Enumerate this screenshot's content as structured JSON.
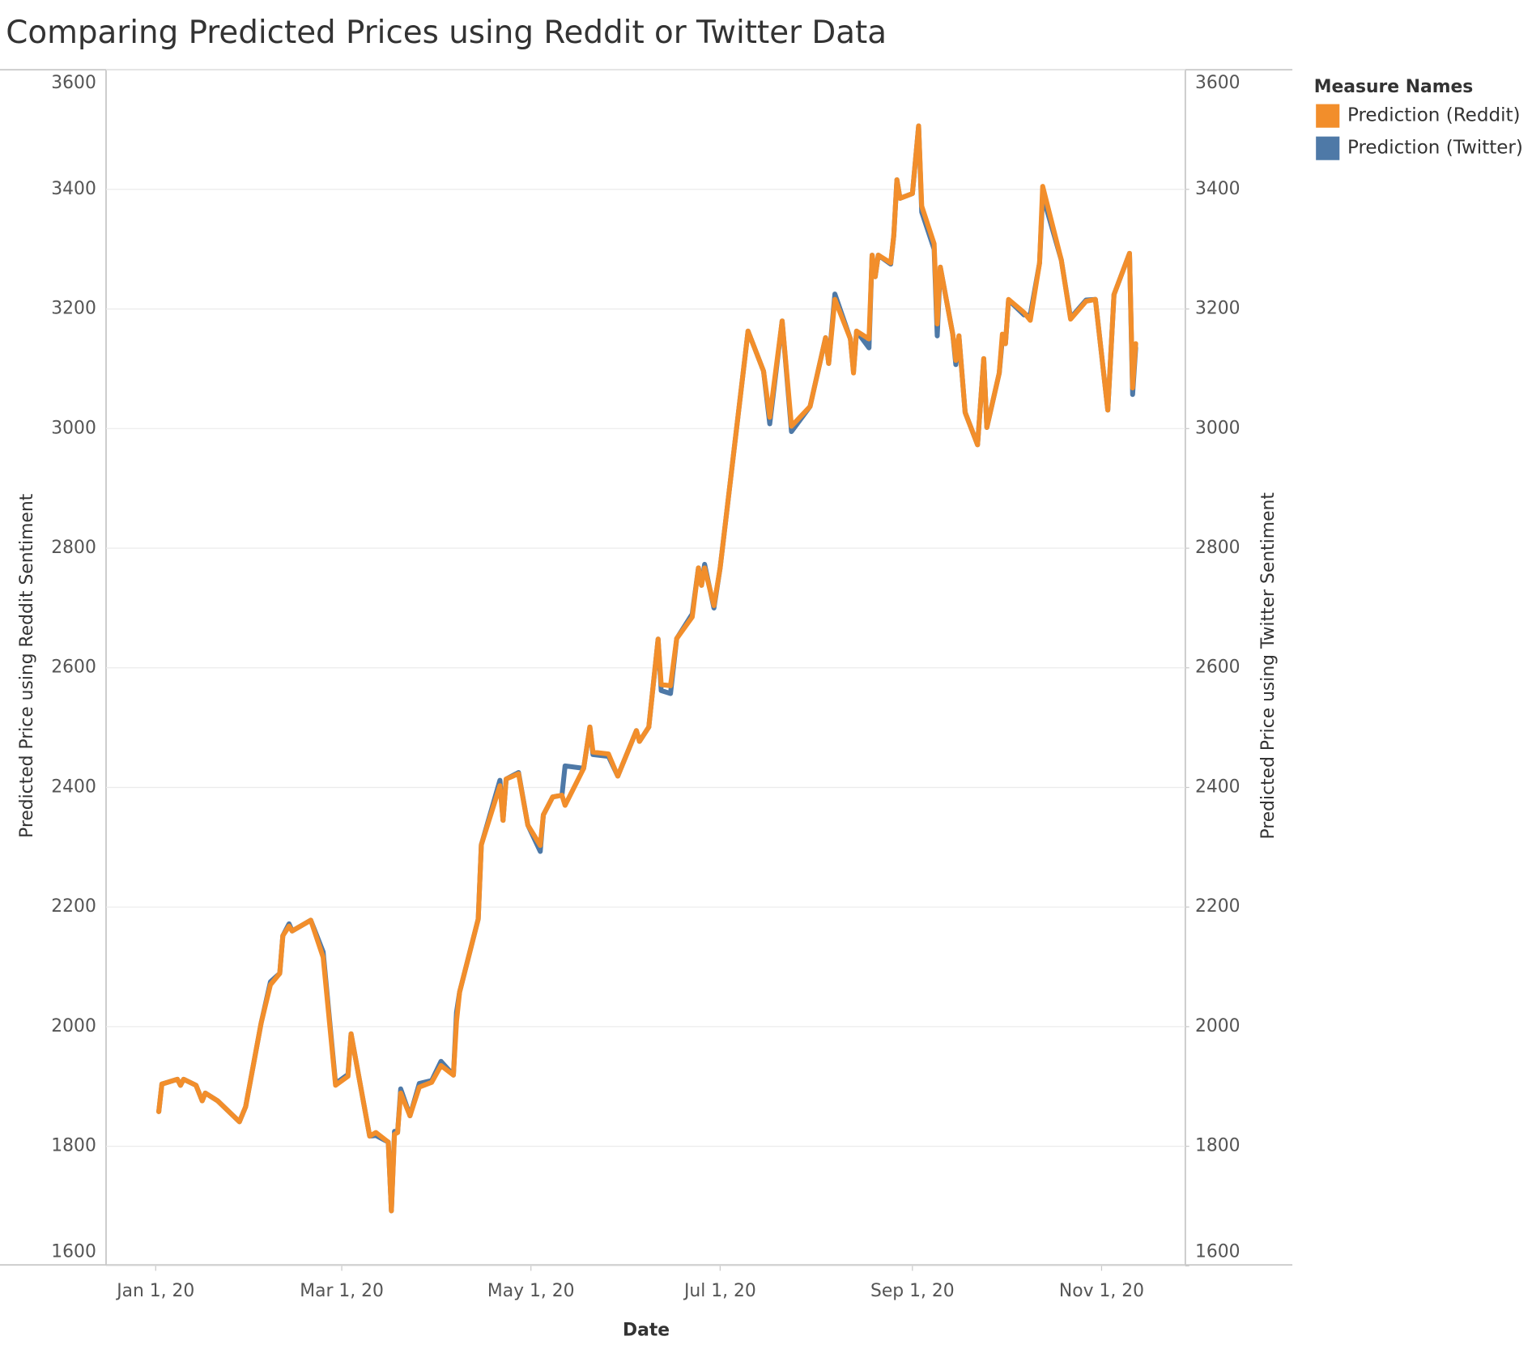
{
  "chart_data": {
    "type": "line",
    "title": "Comparing Predicted Prices using Reddit or Twitter Data",
    "x_label": "Date",
    "y_label": "Predicted Price using Reddit Sentiment",
    "y2_label": "Predicted Price using Twitter Sentiment",
    "legend_title": "Measure Names",
    "legend": "right",
    "grid": true,
    "x": [
      "2020-01-02",
      "2020-01-03",
      "2020-01-08",
      "2020-01-09",
      "2020-01-10",
      "2020-01-14",
      "2020-01-16",
      "2020-01-17",
      "2020-01-21",
      "2020-01-28",
      "2020-01-30",
      "2020-02-04",
      "2020-02-07",
      "2020-02-10",
      "2020-02-11",
      "2020-02-13",
      "2020-02-14",
      "2020-02-20",
      "2020-02-24",
      "2020-02-28",
      "2020-03-03",
      "2020-03-04",
      "2020-03-10",
      "2020-03-12",
      "2020-03-16",
      "2020-03-17",
      "2020-03-18",
      "2020-03-19",
      "2020-03-20",
      "2020-03-23",
      "2020-03-26",
      "2020-03-30",
      "2020-04-02",
      "2020-04-06",
      "2020-04-07",
      "2020-04-08",
      "2020-04-14",
      "2020-04-15",
      "2020-04-21",
      "2020-04-22",
      "2020-04-23",
      "2020-04-27",
      "2020-04-30",
      "2020-05-04",
      "2020-05-05",
      "2020-05-08",
      "2020-05-11",
      "2020-05-12",
      "2020-05-18",
      "2020-05-20",
      "2020-05-21",
      "2020-05-26",
      "2020-05-29",
      "2020-06-04",
      "2020-06-05",
      "2020-06-08",
      "2020-06-11",
      "2020-06-12",
      "2020-06-15",
      "2020-06-17",
      "2020-06-22",
      "2020-06-24",
      "2020-06-25",
      "2020-06-26",
      "2020-06-29",
      "2020-07-01",
      "2020-07-10",
      "2020-07-15",
      "2020-07-17",
      "2020-07-21",
      "2020-07-24",
      "2020-07-30",
      "2020-08-04",
      "2020-08-05",
      "2020-08-07",
      "2020-08-12",
      "2020-08-13",
      "2020-08-14",
      "2020-08-18",
      "2020-08-19",
      "2020-08-20",
      "2020-08-21",
      "2020-08-25",
      "2020-08-26",
      "2020-08-27",
      "2020-08-28",
      "2020-09-01",
      "2020-09-03",
      "2020-09-04",
      "2020-09-08",
      "2020-09-09",
      "2020-09-10",
      "2020-09-14",
      "2020-09-15",
      "2020-09-16",
      "2020-09-18",
      "2020-09-22",
      "2020-09-24",
      "2020-09-25",
      "2020-09-29",
      "2020-09-30",
      "2020-10-01",
      "2020-10-02",
      "2020-10-07",
      "2020-10-09",
      "2020-10-12",
      "2020-10-13",
      "2020-10-19",
      "2020-10-22",
      "2020-10-27",
      "2020-10-30",
      "2020-11-03",
      "2020-11-05",
      "2020-11-10",
      "2020-11-11",
      "2020-11-12"
    ],
    "series": [
      {
        "name": "Prediction (Twitter)",
        "color": "#4e79a7",
        "axis": "y2",
        "values": [
          1858,
          1904,
          1912,
          1902,
          1912,
          1902,
          1876,
          1889,
          1876,
          1841,
          1866,
          2006,
          2075,
          2089,
          2152,
          2172,
          2160,
          2178,
          2125,
          1905,
          1920,
          1988,
          1817,
          1818,
          1807,
          1692,
          1825,
          1823,
          1896,
          1851,
          1905,
          1910,
          1942,
          1919,
          2024,
          2058,
          2180,
          2304,
          2412,
          2345,
          2414,
          2425,
          2337,
          2293,
          2354,
          2384,
          2387,
          2436,
          2432,
          2501,
          2455,
          2452,
          2419,
          2495,
          2477,
          2501,
          2648,
          2562,
          2557,
          2649,
          2690,
          2767,
          2738,
          2773,
          2700,
          2767,
          3163,
          3096,
          3008,
          3180,
          2995,
          3037,
          3152,
          3109,
          3225,
          3150,
          3095,
          3163,
          3135,
          3290,
          3254,
          3290,
          3275,
          3323,
          3416,
          3385,
          3393,
          3506,
          3362,
          3300,
          3155,
          3270,
          3158,
          3107,
          3155,
          3027,
          2973,
          3117,
          3002,
          3093,
          3150,
          3142,
          3215,
          3190,
          3190,
          3277,
          3390,
          3282,
          3185,
          3215,
          3216,
          3031,
          3224,
          3293,
          3057,
          3135
        ]
      },
      {
        "name": "Prediction (Reddit)",
        "color": "#f28e2b",
        "values": [
          1858,
          1904,
          1912,
          1902,
          1912,
          1902,
          1876,
          1889,
          1876,
          1841,
          1866,
          2006,
          2070,
          2089,
          2152,
          2168,
          2160,
          2178,
          2116,
          1902,
          1917,
          1988,
          1817,
          1823,
          1807,
          1692,
          1820,
          1823,
          1889,
          1851,
          1899,
          1907,
          1935,
          1919,
          2009,
          2058,
          2180,
          2304,
          2403,
          2345,
          2414,
          2423,
          2337,
          2303,
          2354,
          2384,
          2387,
          2370,
          2432,
          2501,
          2459,
          2456,
          2419,
          2495,
          2477,
          2501,
          2648,
          2572,
          2570,
          2649,
          2685,
          2767,
          2738,
          2767,
          2704,
          2767,
          3163,
          3096,
          3019,
          3180,
          3004,
          3037,
          3152,
          3109,
          3216,
          3150,
          3093,
          3163,
          3150,
          3290,
          3254,
          3290,
          3277,
          3323,
          3416,
          3385,
          3393,
          3506,
          3372,
          3309,
          3175,
          3270,
          3158,
          3114,
          3155,
          3027,
          2973,
          3117,
          3002,
          3093,
          3158,
          3142,
          3216,
          3194,
          3181,
          3277,
          3405,
          3282,
          3183,
          3213,
          3216,
          3031,
          3224,
          3293,
          3068,
          3142
        ]
      }
    ],
    "legend_order": [
      1,
      0
    ],
    "xlim": [
      "2019-12-16",
      "2020-11-28"
    ],
    "xticks": [
      {
        "value": "2020-01-01",
        "label": "Jan 1, 20"
      },
      {
        "value": "2020-03-01",
        "label": "Mar 1, 20"
      },
      {
        "value": "2020-05-01",
        "label": "May 1, 20"
      },
      {
        "value": "2020-07-01",
        "label": "Jul 1, 20"
      },
      {
        "value": "2020-09-01",
        "label": "Sep 1, 20"
      },
      {
        "value": "2020-11-01",
        "label": "Nov 1, 20"
      }
    ],
    "ylim": [
      1600,
      3600
    ],
    "yticks": [
      1600,
      1800,
      2000,
      2200,
      2400,
      2600,
      2800,
      3000,
      3200,
      3400,
      3600
    ],
    "y2lim": [
      1600,
      3600
    ],
    "y2ticks": [
      1600,
      1800,
      2000,
      2200,
      2400,
      2600,
      2800,
      3000,
      3200,
      3400,
      3600
    ]
  }
}
